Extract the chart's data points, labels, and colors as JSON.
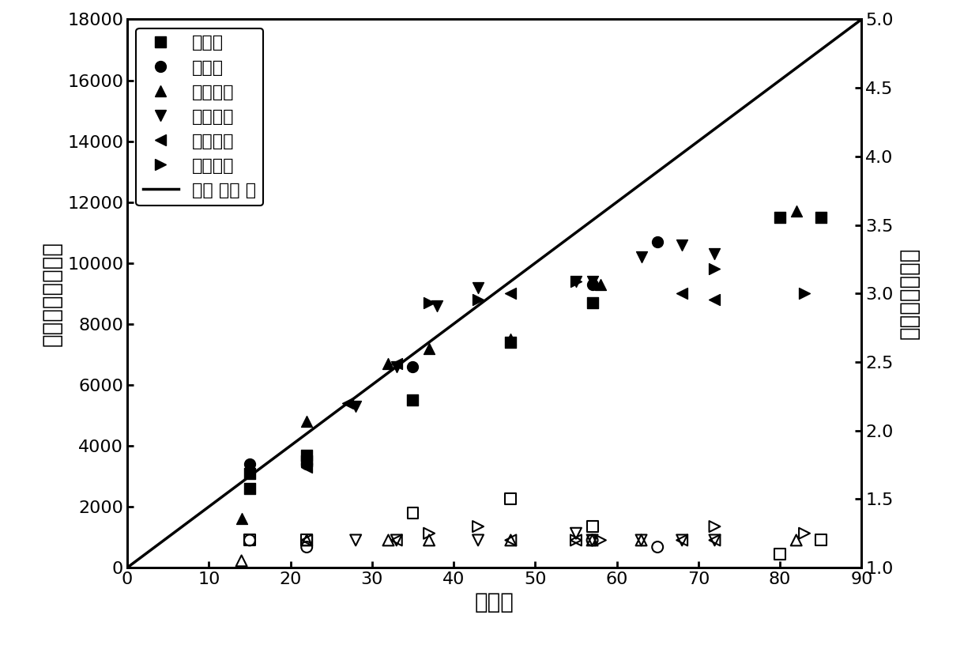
{
  "title": "",
  "xlabel": "转化率",
  "ylabel_left": "数均相对分子质量",
  "ylabel_right": "分子量分布指数",
  "xlim": [
    0,
    90
  ],
  "ylim_left": [
    0,
    18000
  ],
  "ylim_right": [
    1.0,
    5.0
  ],
  "xticks": [
    0,
    10,
    20,
    30,
    40,
    50,
    60,
    70,
    80,
    90
  ],
  "yticks_left": [
    0,
    2000,
    4000,
    6000,
    8000,
    10000,
    12000,
    14000,
    16000,
    18000
  ],
  "yticks_right": [
    1.0,
    1.5,
    2.0,
    2.5,
    3.0,
    3.5,
    4.0,
    4.5,
    5.0
  ],
  "theory_line": {
    "x": [
      0,
      90
    ],
    "y": [
      0,
      18000
    ]
  },
  "mn_series": [
    {
      "key": "碳酸钠_mn",
      "x": [
        15,
        15,
        22,
        22,
        35,
        47,
        57,
        80,
        85
      ],
      "y": [
        3100,
        2600,
        3700,
        3500,
        5500,
        7400,
        8700,
        11500,
        11500
      ],
      "marker": "s",
      "label": "碳酸钠"
    },
    {
      "key": "碳酸钾_mn",
      "x": [
        15,
        22,
        35,
        57,
        65
      ],
      "y": [
        3400,
        3400,
        6600,
        9300,
        10700
      ],
      "marker": "o",
      "label": "碳酸钾"
    },
    {
      "key": "碳酸氢钠_mn",
      "x": [
        14,
        22,
        32,
        37,
        47,
        58,
        82
      ],
      "y": [
        1600,
        4800,
        6700,
        7200,
        7500,
        9300,
        11700
      ],
      "marker": "^",
      "label": "碳酸氢钠"
    },
    {
      "key": "碳酸氢钾_mn",
      "x": [
        28,
        33,
        38,
        43,
        55,
        57,
        63,
        68,
        72
      ],
      "y": [
        5300,
        6600,
        8600,
        9200,
        9400,
        9400,
        10200,
        10600,
        10300
      ],
      "marker": "v",
      "label": "碳酸氢钾"
    },
    {
      "key": "氢氧化钠_mn",
      "x": [
        22,
        27,
        33,
        47,
        68,
        72
      ],
      "y": [
        3300,
        5400,
        6700,
        9000,
        9000,
        8800
      ],
      "marker": "<",
      "label": "氢氧化钠"
    },
    {
      "key": "氢氧化钾_mn",
      "x": [
        37,
        43,
        55,
        72,
        83
      ],
      "y": [
        8700,
        8800,
        9400,
        9800,
        9000
      ],
      "marker": ">",
      "label": "氢氧化钾"
    }
  ],
  "pdi_series": [
    {
      "key": "碳酸钠_pdi",
      "x": [
        15,
        22,
        35,
        47,
        57,
        80,
        85
      ],
      "y": [
        1.2,
        1.2,
        1.4,
        1.5,
        1.3,
        1.1,
        1.2
      ],
      "marker": "s"
    },
    {
      "key": "碳酸钾_pdi",
      "x": [
        15,
        22,
        57,
        65
      ],
      "y": [
        1.2,
        1.15,
        1.2,
        1.15
      ],
      "marker": "o"
    },
    {
      "key": "碳酸氢钠_pdi",
      "x": [
        14,
        22,
        32,
        37,
        47,
        57,
        63,
        82
      ],
      "y": [
        1.05,
        1.2,
        1.2,
        1.2,
        1.2,
        1.2,
        1.2,
        1.2
      ],
      "marker": "^"
    },
    {
      "key": "碳酸氢钾_pdi",
      "x": [
        28,
        33,
        43,
        55,
        57,
        63,
        68,
        72
      ],
      "y": [
        1.2,
        1.2,
        1.2,
        1.25,
        1.2,
        1.2,
        1.2,
        1.2
      ],
      "marker": "v"
    },
    {
      "key": "氢氧化钠_pdi",
      "x": [
        22,
        33,
        47,
        55,
        68,
        72
      ],
      "y": [
        1.2,
        1.2,
        1.2,
        1.2,
        1.2,
        1.2
      ],
      "marker": "<"
    },
    {
      "key": "氢氧化钾_pdi",
      "x": [
        37,
        43,
        55,
        58,
        72,
        83
      ],
      "y": [
        1.25,
        1.3,
        1.2,
        1.2,
        1.3,
        1.25
      ],
      "marker": ">"
    }
  ],
  "legend_labels": [
    "碳酸钠",
    "碳酸钾",
    "碳酸氢钠",
    "碳酸氢钾",
    "氢氧化钠",
    "氢氧化钾",
    "理论 分子 量"
  ],
  "legend_markers": [
    "s",
    "o",
    "^",
    "v",
    "<",
    ">",
    "line"
  ],
  "marker_size": 10,
  "linewidth": 2.5,
  "font_size_label": 20,
  "font_size_tick": 16,
  "font_size_legend": 16,
  "background": "white"
}
